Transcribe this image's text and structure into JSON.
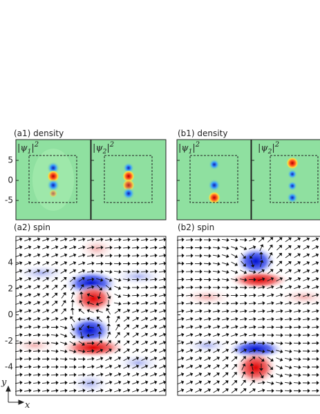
{
  "panels": [
    {
      "label": "(a1) density",
      "maps": [
        {
          "base": "|ψ",
          "sub": "1",
          "close": "|",
          "sup": "2"
        },
        {
          "base": "|ψ",
          "sub": "2",
          "close": "|",
          "sup": "2"
        }
      ],
      "yticks": [
        5,
        0,
        -5
      ]
    },
    {
      "label": "(b1) density",
      "maps": [
        {
          "base": "|ψ",
          "sub": "1",
          "close": "|",
          "sup": "2"
        },
        {
          "base": "|ψ",
          "sub": "2",
          "close": "|",
          "sup": "2"
        }
      ]
    },
    {
      "label": "(a2) spin",
      "yticks": [
        4,
        2,
        0,
        -2,
        -4
      ]
    },
    {
      "label": "(b2) spin"
    }
  ],
  "axes": {
    "y": "y",
    "x": "x"
  }
}
